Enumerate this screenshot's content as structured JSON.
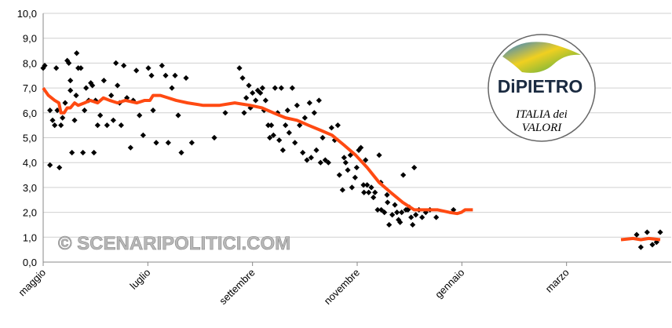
{
  "chart_data": {
    "type": "scatter",
    "xlim": [
      0,
      12
    ],
    "ylim": [
      0,
      10
    ],
    "grid": true,
    "xticks": [
      {
        "value": 0,
        "label": "maggio"
      },
      {
        "value": 2,
        "label": "luglio"
      },
      {
        "value": 4,
        "label": "settembre"
      },
      {
        "value": 6,
        "label": "novembre"
      },
      {
        "value": 8,
        "label": "gennaio"
      },
      {
        "value": 10,
        "label": "marzo"
      }
    ],
    "yticks": [
      {
        "value": 0,
        "label": "0,0"
      },
      {
        "value": 1,
        "label": "1,0"
      },
      {
        "value": 2,
        "label": "2,0"
      },
      {
        "value": 3,
        "label": "3,0"
      },
      {
        "value": 4,
        "label": "4,0"
      },
      {
        "value": 5,
        "label": "5,0"
      },
      {
        "value": 6,
        "label": "6,0"
      },
      {
        "value": 7,
        "label": "7,0"
      },
      {
        "value": 8,
        "label": "8,0"
      },
      {
        "value": 9,
        "label": "9,0"
      },
      {
        "value": 10,
        "label": "10,0"
      }
    ],
    "annotations": [
      "© SCENARIPOLITICI.COM"
    ],
    "logo": {
      "title": "DiPIETRO",
      "lines": [
        "ITALIA dei",
        "VALORI"
      ]
    },
    "series": [
      {
        "type": "scatter",
        "color": "#000000",
        "x": [
          0.0,
          0.03,
          0.13,
          0.13,
          0.18,
          0.22,
          0.25,
          0.27,
          0.31,
          0.34,
          0.37,
          0.42,
          0.46,
          0.49,
          0.52,
          0.52,
          0.55,
          0.6,
          0.63,
          0.64,
          0.67,
          0.72,
          0.76,
          0.79,
          0.82,
          0.87,
          0.91,
          0.94,
          0.97,
          1.0,
          1.04,
          1.09,
          1.16,
          1.22,
          1.3,
          1.34,
          1.39,
          1.42,
          1.46,
          1.49,
          1.54,
          1.6,
          1.67,
          1.72,
          1.78,
          1.84,
          1.91,
          2.01,
          2.07,
          2.1,
          2.16,
          2.27,
          2.34,
          2.39,
          2.46,
          2.52,
          2.58,
          2.64,
          2.73,
          2.84,
          3.27,
          3.48,
          3.75,
          3.81,
          3.84,
          3.88,
          3.93,
          3.96,
          4.0,
          4.06,
          4.1,
          4.15,
          4.19,
          4.22,
          4.25,
          4.3,
          4.33,
          4.36,
          4.4,
          4.43,
          4.48,
          4.51,
          4.55,
          4.58,
          4.63,
          4.67,
          4.7,
          4.76,
          4.81,
          4.85,
          4.9,
          4.96,
          5.0,
          5.04,
          5.09,
          5.12,
          5.18,
          5.22,
          5.27,
          5.3,
          5.34,
          5.39,
          5.45,
          5.51,
          5.57,
          5.63,
          5.66,
          5.72,
          5.75,
          5.78,
          5.82,
          5.87,
          5.9,
          5.96,
          5.99,
          6.03,
          6.07,
          6.12,
          6.13,
          6.16,
          6.19,
          6.22,
          6.27,
          6.31,
          6.34,
          6.39,
          6.42,
          6.45,
          6.46,
          6.52,
          6.57,
          6.58,
          6.61,
          6.67,
          6.72,
          6.76,
          6.79,
          6.82,
          6.85,
          6.88,
          6.93,
          6.97,
          7.0,
          7.03,
          7.06,
          7.09,
          7.12,
          7.18,
          7.24,
          7.31,
          7.39,
          7.51,
          7.84,
          11.34,
          11.42,
          11.54,
          11.64,
          11.72,
          11.79
        ],
        "values": [
          7.8,
          7.9,
          3.9,
          6.1,
          5.7,
          5.5,
          7.8,
          6.1,
          3.8,
          5.5,
          5.8,
          6.4,
          8.1,
          8.0,
          7.3,
          6.9,
          4.4,
          5.7,
          6.7,
          8.4,
          7.8,
          7.8,
          4.4,
          6.1,
          7.0,
          6.5,
          7.2,
          7.1,
          4.4,
          6.5,
          5.5,
          5.9,
          7.3,
          5.5,
          6.7,
          5.7,
          8.0,
          7.1,
          6.4,
          5.5,
          7.9,
          6.6,
          4.6,
          6.5,
          7.7,
          5.9,
          5.1,
          7.8,
          7.5,
          6.1,
          4.8,
          7.9,
          7.5,
          4.8,
          7.0,
          7.5,
          5.9,
          4.4,
          7.4,
          4.8,
          5.0,
          6.0,
          7.8,
          7.4,
          6.0,
          6.6,
          7.1,
          6.2,
          6.8,
          6.5,
          6.9,
          6.8,
          7.0,
          6.1,
          6.5,
          5.5,
          5.0,
          5.5,
          5.1,
          7.0,
          6.0,
          4.9,
          7.0,
          4.5,
          5.5,
          6.1,
          5.2,
          7.0,
          4.8,
          6.3,
          5.5,
          4.4,
          5.8,
          4.1,
          6.4,
          4.2,
          6.0,
          4.5,
          6.5,
          4.0,
          5.0,
          4.1,
          4.0,
          5.4,
          4.9,
          5.5,
          3.5,
          2.9,
          4.2,
          4.0,
          3.7,
          4.3,
          3.0,
          3.4,
          3.8,
          4.5,
          4.6,
          3.1,
          2.8,
          4.1,
          3.1,
          2.8,
          3.0,
          2.6,
          2.8,
          2.1,
          4.3,
          3.2,
          2.1,
          2.0,
          2.7,
          2.4,
          1.5,
          1.9,
          2.3,
          2.0,
          1.7,
          1.6,
          2.0,
          3.5,
          2.1,
          2.1,
          2.2,
          1.8,
          1.5,
          3.8,
          1.9,
          2.1,
          1.8,
          2.0,
          2.1,
          1.8,
          2.1,
          1.1,
          0.6,
          1.2,
          0.7,
          0.8,
          1.2
        ]
      },
      {
        "type": "line",
        "color": "#ff4a12",
        "x": [
          0,
          0.1,
          0.22,
          0.3,
          0.34,
          0.4,
          0.46,
          0.52,
          0.6,
          0.67,
          0.79,
          0.9,
          1.04,
          1.15,
          1.27,
          1.42,
          1.57,
          1.79,
          1.94,
          2.04,
          2.1,
          2.24,
          2.39,
          2.54,
          2.76,
          3.06,
          3.36,
          3.66,
          3.96,
          4.18,
          4.4,
          4.63,
          4.85,
          5.07,
          5.3,
          5.52,
          5.75,
          5.97,
          6.19,
          6.42,
          6.64,
          6.87,
          7.09,
          7.31,
          7.54,
          7.76,
          7.91,
          7.99,
          8.06,
          8.21,
          9.0,
          11.04,
          11.27,
          11.42,
          11.57,
          11.79
        ],
        "values": [
          7.0,
          6.7,
          6.5,
          6.4,
          6.0,
          6.0,
          6.2,
          6.2,
          6.4,
          6.3,
          6.4,
          6.5,
          6.4,
          6.6,
          6.5,
          6.4,
          6.5,
          6.4,
          6.5,
          6.5,
          6.7,
          6.7,
          6.6,
          6.5,
          6.4,
          6.3,
          6.3,
          6.4,
          6.3,
          6.2,
          6.0,
          5.8,
          5.7,
          5.5,
          5.3,
          5.1,
          4.7,
          4.3,
          3.8,
          3.2,
          2.8,
          2.4,
          2.1,
          2.1,
          2.1,
          2.0,
          1.95,
          2.0,
          2.1,
          2.1,
          null,
          0.9,
          0.95,
          0.9,
          0.95,
          0.9
        ]
      }
    ]
  }
}
